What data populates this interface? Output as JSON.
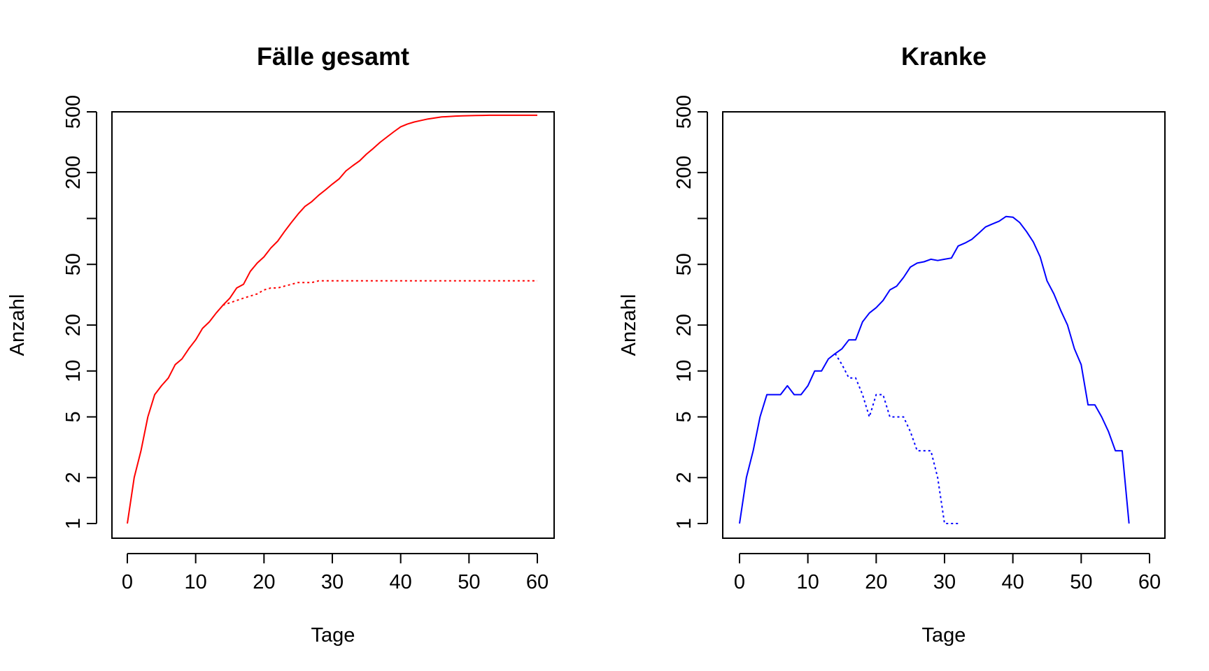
{
  "chart_data": [
    {
      "type": "line",
      "title": "Fälle gesamt",
      "xlabel": "Tage",
      "ylabel": "Anzahl",
      "xlim": [
        0,
        60
      ],
      "ylim": [
        1,
        500
      ],
      "y_scale": "log",
      "x_ticks": [
        "0",
        "10",
        "20",
        "30",
        "40",
        "50",
        "60"
      ],
      "y_ticks": [
        "1",
        "2",
        "5",
        "10",
        "20",
        "50",
        "200",
        "500"
      ],
      "y_tick_marks": [
        1,
        2,
        5,
        10,
        20,
        50,
        100,
        200,
        500
      ],
      "series": [
        {
          "style": "solid",
          "color": "#ff0000",
          "x": [
            0,
            1,
            2,
            3,
            4,
            5,
            6,
            7,
            8,
            9,
            10,
            11,
            12,
            13,
            14,
            15,
            16,
            17,
            18,
            19,
            20,
            21,
            22,
            23,
            24,
            25,
            26,
            27,
            28,
            29,
            30,
            31,
            32,
            33,
            34,
            35,
            36,
            37,
            38,
            39,
            40,
            41,
            42,
            43,
            44,
            45,
            46,
            47,
            48,
            49,
            50,
            51,
            52,
            53,
            54,
            55,
            56,
            57,
            58,
            59,
            60
          ],
          "y": [
            1,
            2,
            3,
            5,
            7,
            8,
            9,
            11,
            12,
            14,
            16,
            19,
            21,
            24,
            27,
            30,
            35,
            37,
            45,
            51,
            56,
            64,
            71,
            82,
            94,
            107,
            120,
            129,
            142,
            154,
            168,
            182,
            205,
            222,
            239,
            264,
            288,
            316,
            342,
            370,
            399,
            416,
            429,
            439,
            449,
            456,
            463,
            466,
            469,
            471,
            472,
            473,
            474,
            475,
            475,
            475,
            475,
            475,
            475,
            475,
            475
          ]
        },
        {
          "style": "dotted",
          "color": "#ff0000",
          "x": [
            14,
            15,
            16,
            17,
            18,
            19,
            20,
            21,
            22,
            23,
            24,
            25,
            26,
            27,
            28,
            29,
            30,
            31,
            32,
            33,
            34,
            35,
            36,
            37,
            38,
            39,
            40,
            41,
            42,
            43,
            44,
            45,
            46,
            47,
            48,
            49,
            50,
            51,
            52,
            53,
            54,
            55,
            56,
            57,
            58,
            59,
            60
          ],
          "y": [
            27,
            28,
            29,
            30,
            31,
            32,
            34,
            35,
            35,
            36,
            37,
            38,
            38,
            38,
            39,
            39,
            39,
            39,
            39,
            39,
            39,
            39,
            39,
            39,
            39,
            39,
            39,
            39,
            39,
            39,
            39,
            39,
            39,
            39,
            39,
            39,
            39,
            39,
            39,
            39,
            39,
            39,
            39,
            39,
            39,
            39,
            39
          ]
        }
      ]
    },
    {
      "type": "line",
      "title": "Kranke",
      "xlabel": "Tage",
      "ylabel": "Anzahl",
      "xlim": [
        0,
        60
      ],
      "ylim": [
        1,
        500
      ],
      "y_scale": "log",
      "x_ticks": [
        "0",
        "10",
        "20",
        "30",
        "40",
        "50",
        "60"
      ],
      "y_ticks": [
        "1",
        "2",
        "5",
        "10",
        "20",
        "50",
        "200",
        "500"
      ],
      "y_tick_marks": [
        1,
        2,
        5,
        10,
        20,
        50,
        100,
        200,
        500
      ],
      "series": [
        {
          "style": "solid",
          "color": "#0000ff",
          "x": [
            0,
            1,
            2,
            3,
            4,
            5,
            6,
            7,
            8,
            9,
            10,
            11,
            12,
            13,
            14,
            15,
            16,
            17,
            18,
            19,
            20,
            21,
            22,
            23,
            24,
            25,
            26,
            27,
            28,
            29,
            30,
            31,
            32,
            33,
            34,
            35,
            36,
            37,
            38,
            39,
            40,
            41,
            42,
            43,
            44,
            45,
            46,
            47,
            48,
            49,
            50,
            51,
            52,
            53,
            54,
            55,
            56,
            57
          ],
          "y": [
            1,
            2,
            3,
            5,
            7,
            7,
            7,
            8,
            7,
            7,
            8,
            10,
            10,
            12,
            13,
            14,
            16,
            16,
            21,
            24,
            26,
            29,
            34,
            36,
            41,
            48,
            51,
            52,
            54,
            53,
            54,
            55,
            66,
            69,
            73,
            80,
            88,
            92,
            96,
            103,
            102,
            94,
            82,
            70,
            56,
            39,
            32,
            25,
            20,
            14,
            11,
            6,
            6,
            5,
            4,
            3,
            3,
            1
          ]
        },
        {
          "style": "dotted",
          "color": "#0000ff",
          "x": [
            14,
            15,
            16,
            17,
            18,
            19,
            20,
            21,
            22,
            23,
            24,
            25,
            26,
            27,
            28,
            29,
            30,
            31,
            32
          ],
          "y": [
            13,
            11,
            9,
            9,
            7,
            5,
            7,
            7,
            5,
            5,
            5,
            4,
            3,
            3,
            3,
            2,
            1,
            1,
            1
          ]
        }
      ]
    }
  ]
}
